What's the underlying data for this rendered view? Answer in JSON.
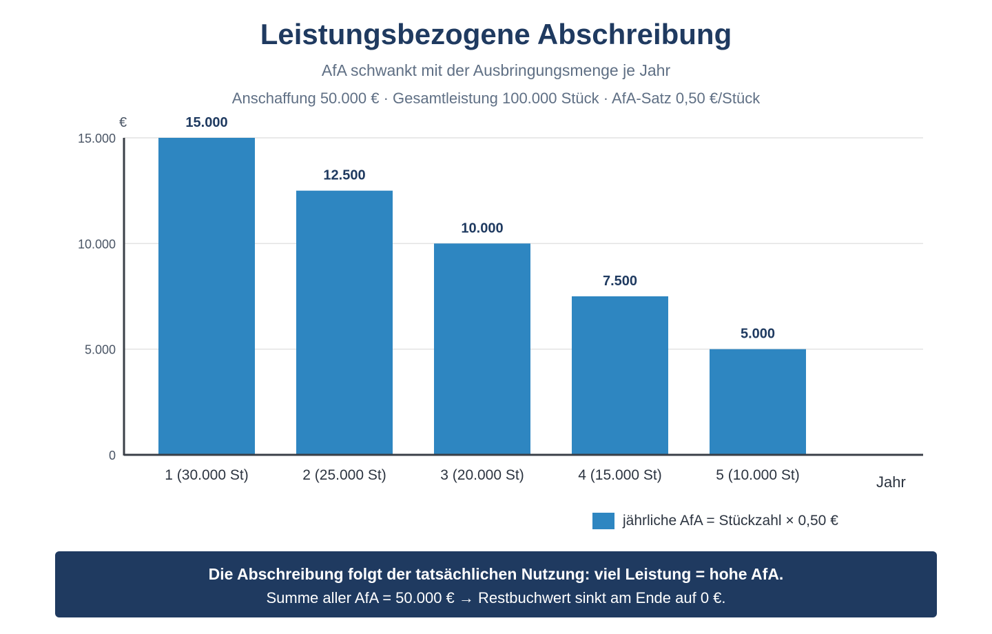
{
  "header": {
    "title": "Leistungsbezogene Abschreibung",
    "subtitle": "AfA schwankt mit der Ausbringungsmenge je Jahr",
    "params": "Anschaffung 50.000 € · Gesamtleistung 100.000 Stück · AfA-Satz 0,50 €/Stück"
  },
  "chart_data": {
    "type": "bar",
    "categories": [
      "1 (30.000 St)",
      "2 (25.000 St)",
      "3 (20.000 St)",
      "4 (15.000 St)",
      "5 (10.000 St)"
    ],
    "values": [
      15000,
      12500,
      10000,
      7500,
      5000
    ],
    "value_labels": [
      "15.000",
      "12.500",
      "10.000",
      "7.500",
      "5.000"
    ],
    "yticks": [
      0,
      5000,
      10000,
      15000
    ],
    "ytick_labels": [
      "0",
      "5.000",
      "10.000",
      "15.000"
    ],
    "ylim": [
      0,
      15000
    ],
    "ylabel": "€",
    "xlabel": "Jahr",
    "grid": true,
    "legend_position": "bottom-right",
    "series": [
      {
        "name": "jährliche AfA = Stückzahl × 0,50 €",
        "values": [
          15000,
          12500,
          10000,
          7500,
          5000
        ],
        "color": "#2e86c1"
      }
    ]
  },
  "colors": {
    "bar": "#2e86c1",
    "title": "#1f3a60",
    "note_background": "#1f3a60",
    "grid": "#e2e2e2",
    "axis": "#3a3f47"
  },
  "note": {
    "bold": "Die Abschreibung folgt der tatsächlichen Nutzung: viel Leistung = hohe AfA.",
    "text": "Summe aller AfA = 50.000 € → Restbuchwert sinkt am Ende auf 0 €."
  }
}
